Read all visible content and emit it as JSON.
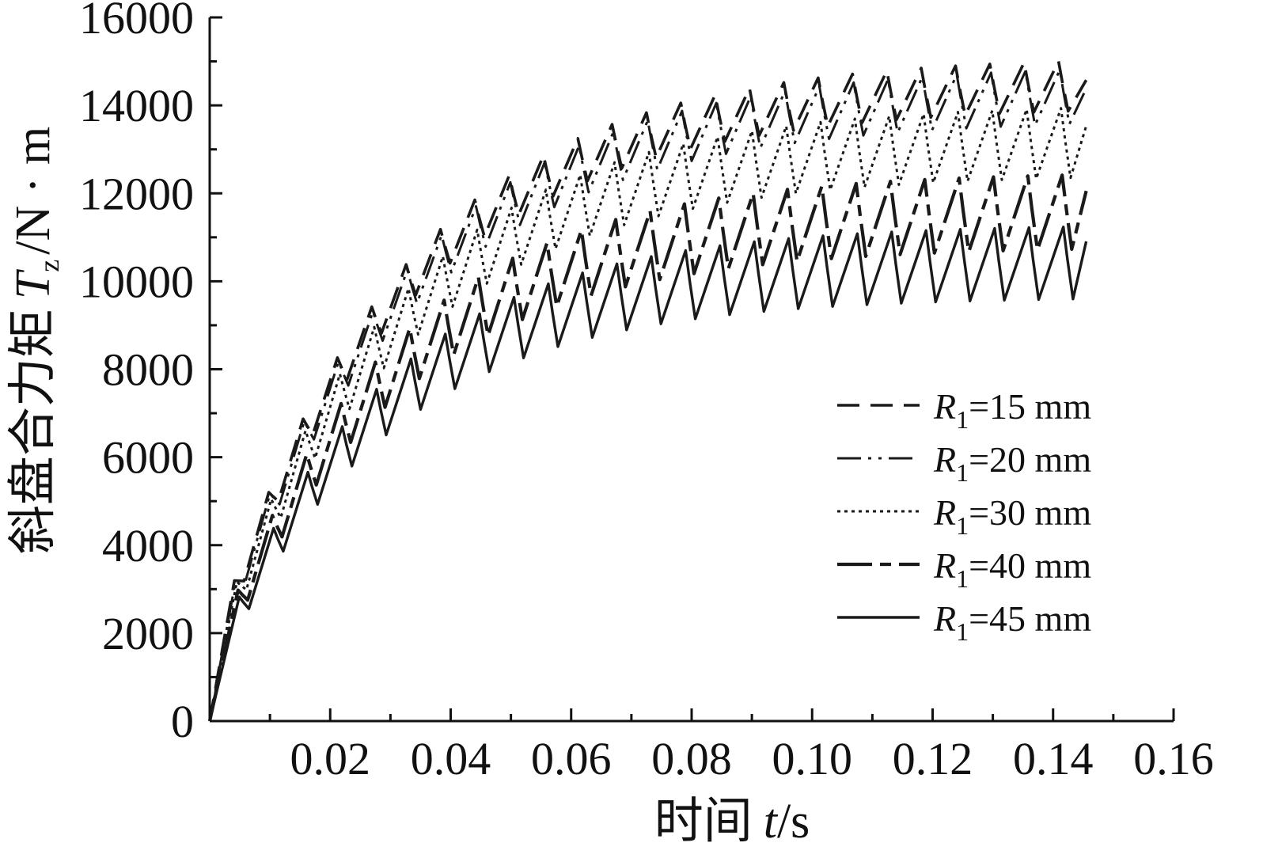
{
  "chart_data": {
    "type": "line",
    "xlabel_cn": "时间",
    "xlabel_var": "t",
    "xlabel_unit": "/s",
    "ylabel_cn": "斜盘合力矩",
    "ylabel_var": "T",
    "ylabel_sub": "z",
    "ylabel_unit": "/N · m",
    "xlim": [
      0,
      0.16
    ],
    "ylim": [
      0,
      16000
    ],
    "x_ticks": [
      "0.02",
      "0.04",
      "0.06",
      "0.08",
      "0.10",
      "0.12",
      "0.14",
      "0.16"
    ],
    "y_ticks": [
      "0",
      "2000",
      "4000",
      "6000",
      "8000",
      "10000",
      "12000",
      "14000",
      "16000"
    ],
    "legend_position": "right",
    "grid": false,
    "oscillation_period": 0.0057,
    "x_end": 0.1455,
    "series": [
      {
        "label_var": "R",
        "label_sub": "1",
        "label_rest": "=15 mm",
        "dash": "28,14",
        "width": 3.6,
        "color": "#1a1a1a",
        "peak_start": 1500,
        "peak_end": 15150,
        "valley_start": 1000,
        "valley_end": 14000,
        "tau": 0.031
      },
      {
        "label_var": "R",
        "label_sub": "1",
        "label_rest": "=20 mm",
        "dash": "30,9,4,9,4,9",
        "width": 3.0,
        "color": "#1a1a1a",
        "peak_start": 1450,
        "peak_end": 14950,
        "valley_start": 950,
        "valley_end": 13700,
        "tau": 0.031
      },
      {
        "label_var": "R",
        "label_sub": "1",
        "label_rest": "=30 mm",
        "dash": "4,5",
        "width": 3.0,
        "color": "#1a1a1a",
        "peak_start": 1400,
        "peak_end": 14050,
        "valley_start": 850,
        "valley_end": 12450,
        "tau": 0.03
      },
      {
        "label_var": "R",
        "label_sub": "1",
        "label_rest": "=40 mm",
        "dash": "44,10,14,10",
        "width": 4.2,
        "color": "#1a1a1a",
        "peak_start": 1300,
        "peak_end": 12500,
        "valley_start": 800,
        "valley_end": 10800,
        "tau": 0.029
      },
      {
        "label_var": "R",
        "label_sub": "1",
        "label_rest": "=45 mm",
        "dash": "",
        "width": 3.4,
        "color": "#1a1a1a",
        "peak_start": 1200,
        "peak_end": 11300,
        "valley_start": 700,
        "valley_end": 9650,
        "tau": 0.028
      }
    ]
  }
}
